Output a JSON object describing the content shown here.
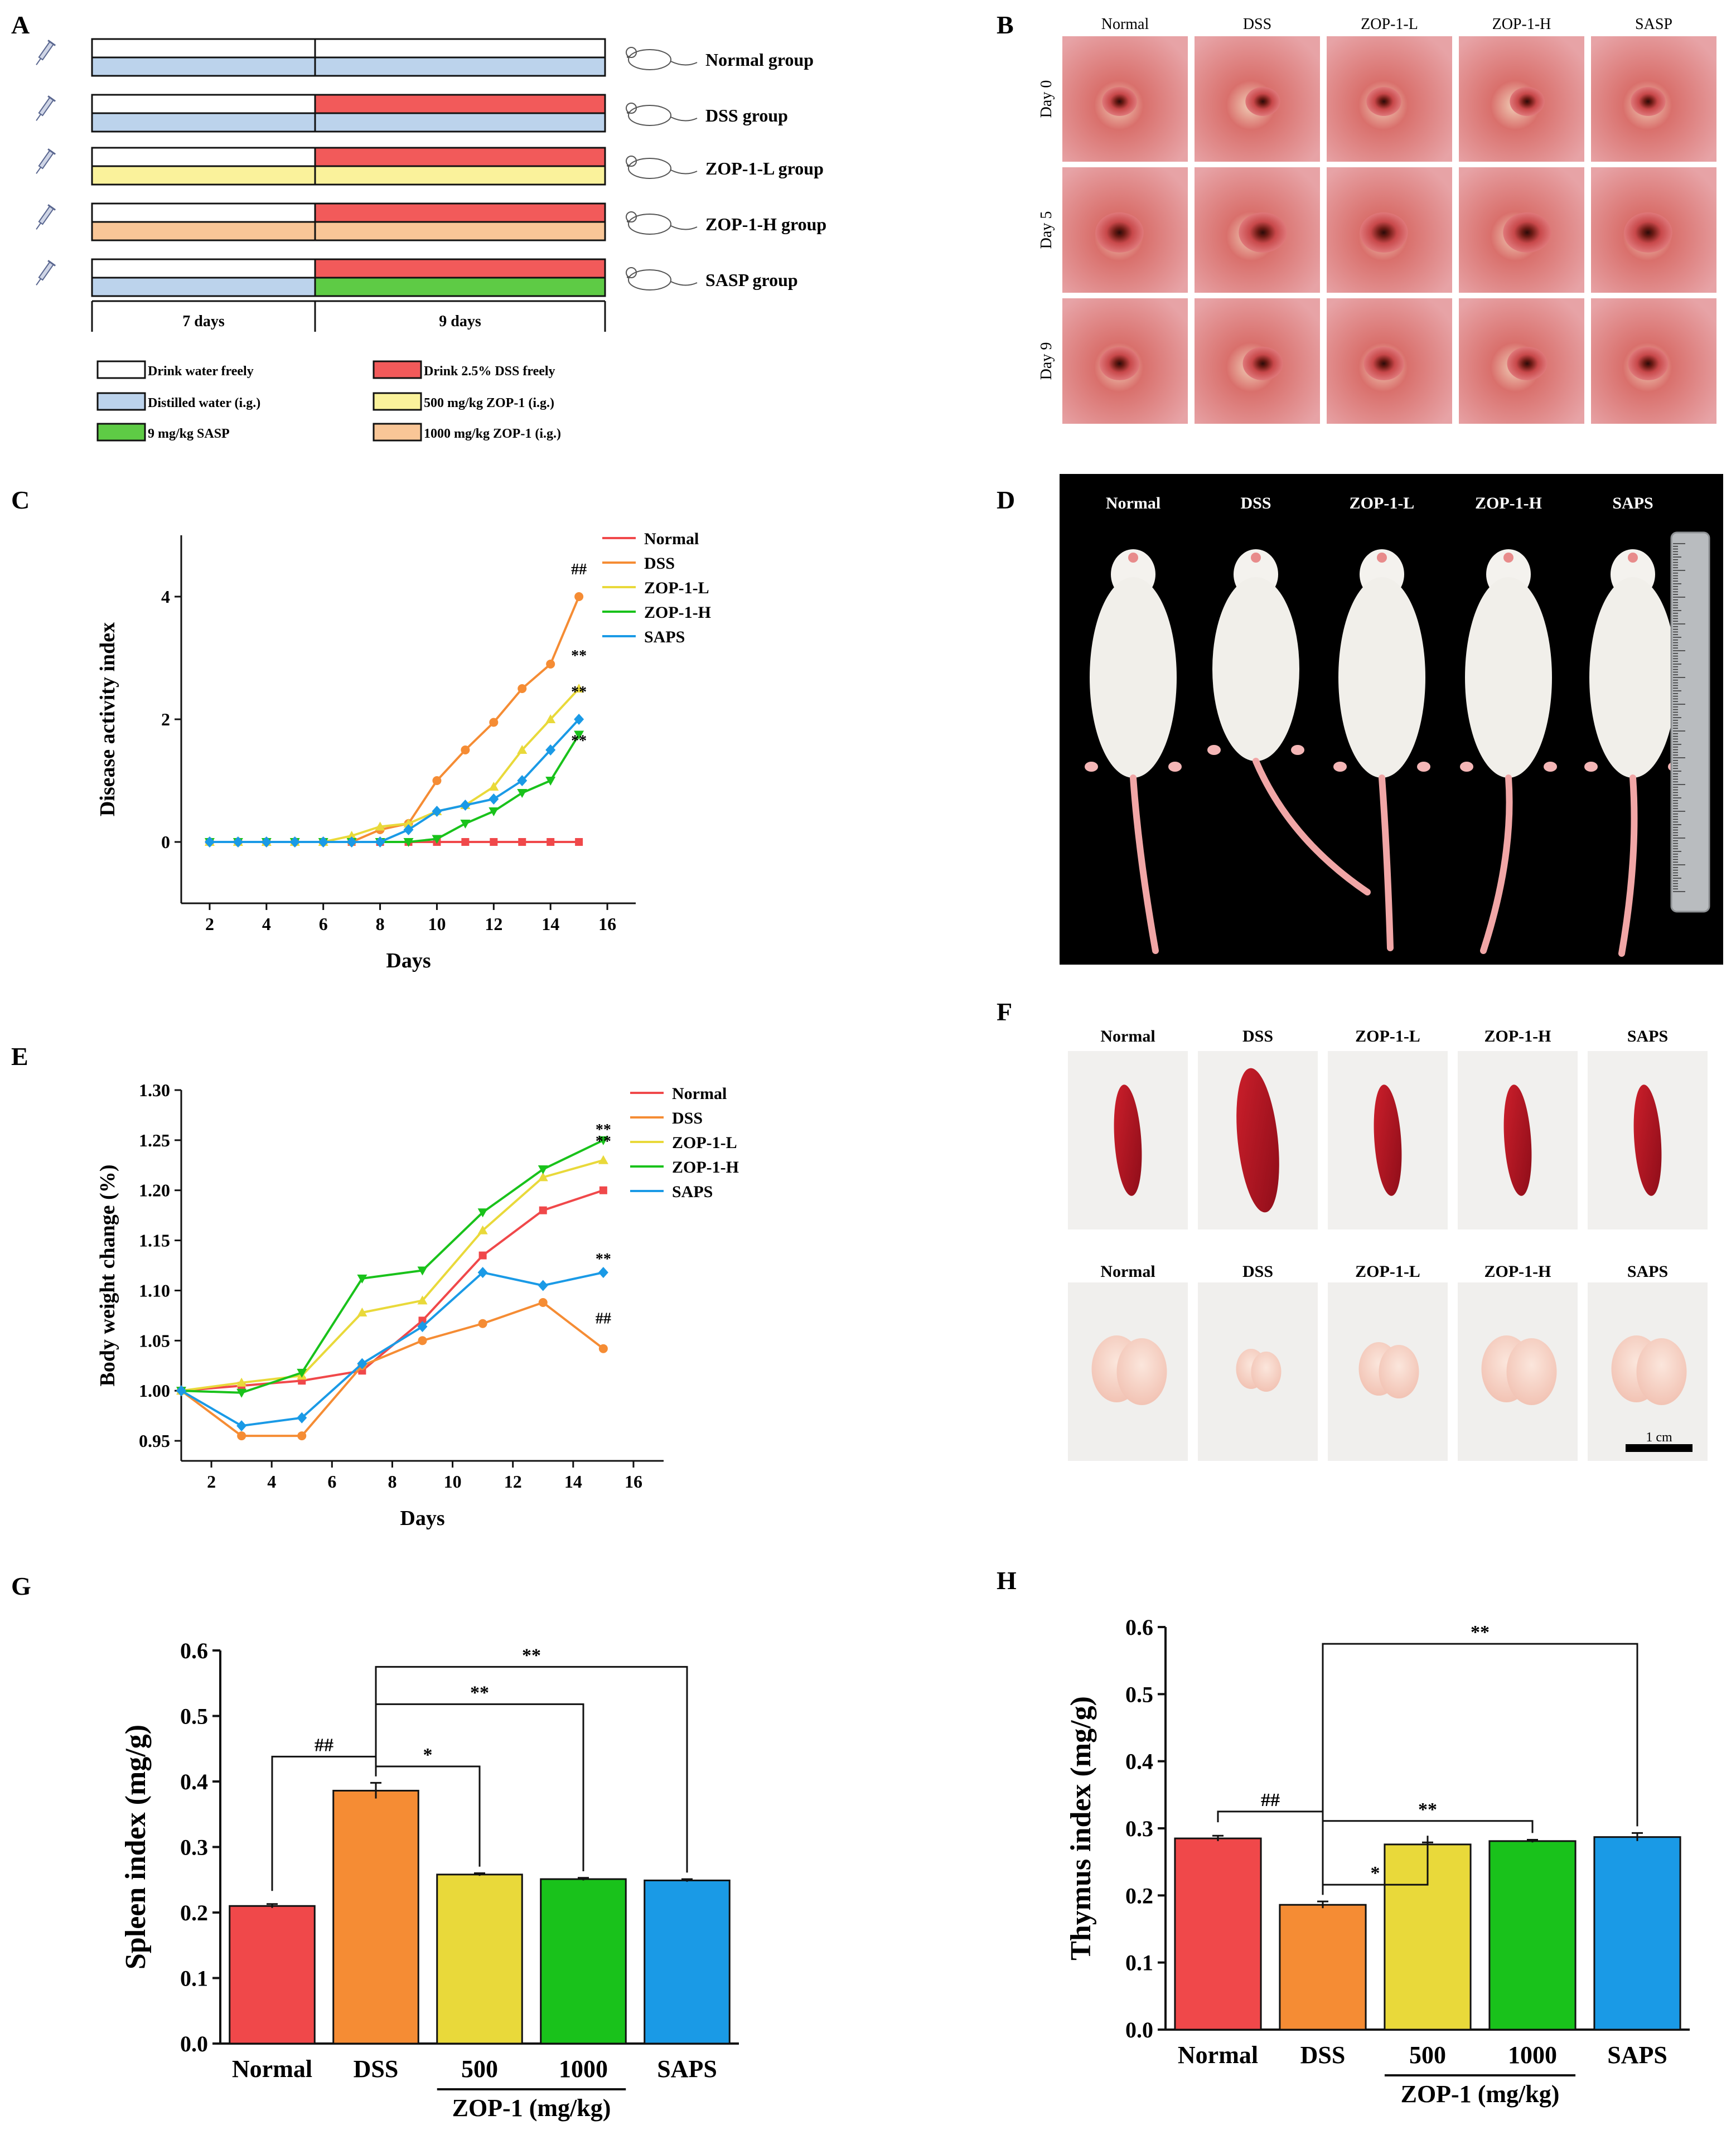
{
  "figure": {
    "panel_letters": [
      "A",
      "B",
      "C",
      "D",
      "E",
      "F",
      "G",
      "H"
    ]
  },
  "panelA": {
    "groups": [
      {
        "name": "Normal group",
        "pre": "water",
        "post": "water",
        "under_pre": "distilled",
        "under_post": "distilled"
      },
      {
        "name": "DSS group",
        "pre": "water",
        "post": "dss",
        "under_pre": "distilled",
        "under_post": "distilled"
      },
      {
        "name": "ZOP-1-L group",
        "pre": "water",
        "post": "dss",
        "under_pre": "zop500",
        "under_post": "zop500"
      },
      {
        "name": "ZOP-1-H group",
        "pre": "water",
        "post": "dss",
        "under_pre": "zop1000",
        "under_post": "zop1000"
      },
      {
        "name": "SASP group",
        "pre": "water",
        "post": "dss",
        "under_pre": "distilled",
        "under_post": "sasp"
      }
    ],
    "periods": [
      "7 days",
      "9 days"
    ],
    "legend": [
      {
        "key": "water",
        "label": "Drink water freely",
        "color": "#ffffff"
      },
      {
        "key": "dss",
        "label": "Drink 2.5% DSS freely",
        "color": "#f25a5a"
      },
      {
        "key": "distilled",
        "label": "Distilled water (i.g.)",
        "color": "#bcd3ec"
      },
      {
        "key": "zop500",
        "label": "500 mg/kg ZOP-1 (i.g.)",
        "color": "#faf29b"
      },
      {
        "key": "sasp",
        "label": "9 mg/kg SASP",
        "color": "#5ecb45"
      },
      {
        "key": "zop1000",
        "label": "1000 mg/kg ZOP-1 (i.g.)",
        "color": "#f9c697"
      }
    ]
  },
  "panelB": {
    "columns": [
      "Normal",
      "DSS",
      "ZOP-1-L",
      "ZOP-1-H",
      "SASP"
    ],
    "rows": [
      "Day 0",
      "Day 5",
      "Day 9"
    ]
  },
  "panelD": {
    "labels": [
      "Normal",
      "DSS",
      "ZOP-1-L",
      "ZOP-1-H",
      "SAPS"
    ]
  },
  "panelF": {
    "labels_top": [
      "Normal",
      "DSS",
      "ZOP-1-L",
      "ZOP-1-H",
      "SAPS"
    ],
    "labels_bottom": [
      "Normal",
      "DSS",
      "ZOP-1-L",
      "ZOP-1-H",
      "SAPS"
    ],
    "scale": "1 cm"
  },
  "colors": {
    "Normal": "#f0484a",
    "DSS": "#f58c34",
    "ZOP-1-L": "#e9d93a",
    "ZOP-1-H": "#19c21b",
    "SAPS": "#1a9ae6"
  },
  "chart_data": [
    {
      "id": "C",
      "type": "line",
      "xlabel": "Days",
      "ylabel": "Disease activity index",
      "xlim": [
        1,
        17
      ],
      "ylim": [
        -1,
        5
      ],
      "xticks": [
        2,
        4,
        6,
        8,
        10,
        12,
        14,
        16
      ],
      "yticks": [
        0,
        2,
        4
      ],
      "x": [
        2,
        3,
        4,
        5,
        6,
        7,
        8,
        9,
        10,
        11,
        12,
        13,
        14,
        15
      ],
      "series": [
        {
          "name": "Normal",
          "values": [
            0,
            0,
            0,
            0,
            0,
            0,
            0,
            0,
            0,
            0,
            0,
            0,
            0,
            0
          ]
        },
        {
          "name": "DSS",
          "values": [
            0,
            0,
            0,
            0,
            0,
            0,
            0.2,
            0.3,
            1.0,
            1.5,
            1.95,
            2.5,
            2.9,
            4.0
          ]
        },
        {
          "name": "ZOP-1-L",
          "values": [
            0,
            0,
            0,
            0,
            0,
            0.1,
            0.25,
            0.3,
            0.5,
            0.6,
            0.9,
            1.5,
            2.0,
            2.5
          ]
        },
        {
          "name": "ZOP-1-H",
          "values": [
            0,
            0,
            0,
            0,
            0,
            0,
            0,
            0,
            0.05,
            0.3,
            0.5,
            0.8,
            1.0,
            1.75
          ]
        },
        {
          "name": "SAPS",
          "values": [
            0,
            0,
            0,
            0,
            0,
            0,
            0,
            0.2,
            0.5,
            0.6,
            0.7,
            1.0,
            1.5,
            2.0
          ]
        }
      ],
      "annotations": [
        "##",
        "**",
        "**",
        "**"
      ]
    },
    {
      "id": "E",
      "type": "line",
      "xlabel": "Days",
      "ylabel": "Body weight change (%)",
      "xlim": [
        1,
        17
      ],
      "ylim": [
        0.93,
        1.3
      ],
      "xticks": [
        2,
        4,
        6,
        8,
        10,
        12,
        14,
        16
      ],
      "yticks": [
        "0.95",
        "1.00",
        "1.05",
        "1.10",
        "1.15",
        "1.20",
        "1.25",
        "1.30"
      ],
      "x": [
        1,
        3,
        5,
        7,
        9,
        11,
        13,
        15
      ],
      "series": [
        {
          "name": "Normal",
          "values": [
            1.0,
            1.005,
            1.01,
            1.02,
            1.07,
            1.135,
            1.18,
            1.2
          ]
        },
        {
          "name": "DSS",
          "values": [
            1.0,
            0.955,
            0.955,
            1.025,
            1.05,
            1.067,
            1.088,
            1.042
          ]
        },
        {
          "name": "ZOP-1-L",
          "values": [
            1.0,
            1.008,
            1.015,
            1.078,
            1.09,
            1.16,
            1.213,
            1.23
          ]
        },
        {
          "name": "ZOP-1-H",
          "values": [
            1.0,
            0.998,
            1.018,
            1.112,
            1.12,
            1.178,
            1.221,
            1.25
          ]
        },
        {
          "name": "SAPS",
          "values": [
            1.0,
            0.965,
            0.973,
            1.027,
            1.064,
            1.118,
            1.105,
            1.118
          ]
        }
      ],
      "annotations": [
        "**",
        "**",
        "**",
        "##"
      ]
    },
    {
      "id": "G",
      "type": "bar",
      "ylabel": "Spleen index (mg/g)",
      "xlabel": "ZOP-1 (mg/kg)",
      "categories": [
        "Normal",
        "DSS",
        "500",
        "1000",
        "SAPS"
      ],
      "values": [
        0.21,
        0.386,
        0.258,
        0.251,
        0.249
      ],
      "errors": [
        0.003,
        0.012,
        0.002,
        0.002,
        0.002
      ],
      "ylim": [
        0,
        0.6
      ],
      "yticks": [
        "0.0",
        "0.1",
        "0.2",
        "0.3",
        "0.4",
        "0.5",
        "0.6"
      ],
      "significance": [
        {
          "from": 0,
          "to": 1,
          "label": "##"
        },
        {
          "from": 1,
          "to": 2,
          "label": "*"
        },
        {
          "from": 1,
          "to": 3,
          "label": "**"
        },
        {
          "from": 1,
          "to": 4,
          "label": "**"
        }
      ]
    },
    {
      "id": "H",
      "type": "bar",
      "ylabel": "Thymus index (mg/g)",
      "xlabel": "ZOP-1 (mg/kg)",
      "categories": [
        "Normal",
        "DSS",
        "500",
        "1000",
        "SAPS"
      ],
      "values": [
        0.285,
        0.186,
        0.276,
        0.281,
        0.287
      ],
      "errors": [
        0.004,
        0.005,
        0.003,
        0.002,
        0.006
      ],
      "ylim": [
        0,
        0.6
      ],
      "yticks": [
        "0.0",
        "0.1",
        "0.2",
        "0.3",
        "0.4",
        "0.5",
        "0.6"
      ],
      "significance": [
        {
          "from": 0,
          "to": 1,
          "label": "##"
        },
        {
          "from": 1,
          "to": 2,
          "label": "*"
        },
        {
          "from": 1,
          "to": 3,
          "label": "**"
        },
        {
          "from": 1,
          "to": 4,
          "label": "**"
        }
      ]
    }
  ]
}
